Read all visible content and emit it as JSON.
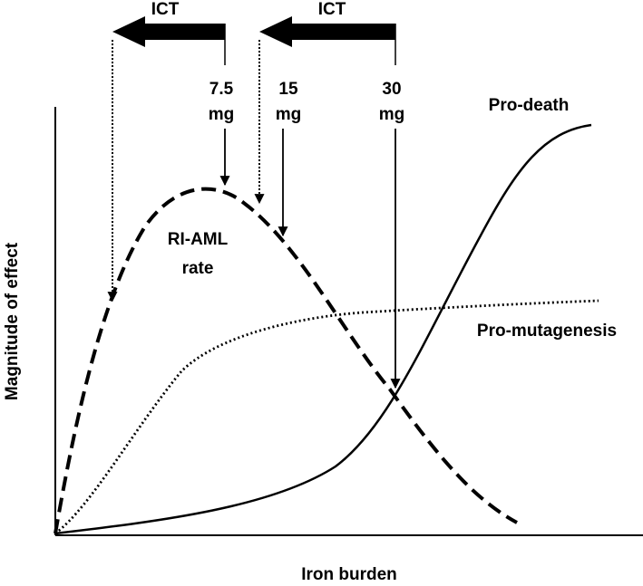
{
  "axes": {
    "x_label": "Iron burden",
    "y_label": "Magnitude of effect"
  },
  "curves": {
    "aml_rate_line1": "RI-AML",
    "aml_rate_line2": "rate",
    "pro_death": "Pro-death",
    "pro_mutagenesis": "Pro-mutagenesis"
  },
  "doses": {
    "dose_low_value": "7.5",
    "dose_mid_value": "15",
    "dose_high_value": "30",
    "unit": "mg"
  },
  "treatment": {
    "ict_left": "ICT",
    "ict_right": "ICT"
  },
  "colors": {
    "ink": "#000000",
    "background": "#ffffff"
  }
}
